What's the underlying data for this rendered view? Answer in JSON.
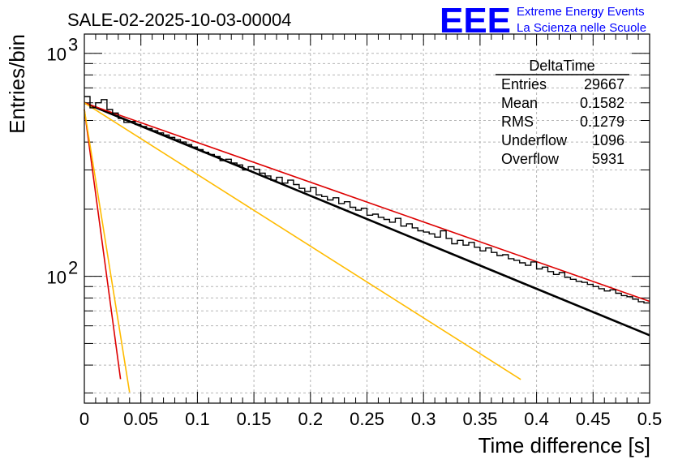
{
  "title": "SALE-02-2025-10-03-00004",
  "logo": {
    "mark": "EEE",
    "line1": "Extreme Energy Events",
    "line2": "La Scienza nelle Scuole",
    "color": "#0000ff"
  },
  "chart_data": {
    "type": "histogram",
    "xlabel": "Time difference [s]",
    "ylabel": "Entries/bin",
    "xlim": [
      0,
      0.5
    ],
    "ylim": [
      27,
      1220
    ],
    "yscale": "log",
    "grid": true,
    "xtick_labels": [
      "0",
      "0.05",
      "0.1",
      "0.15",
      "0.2",
      "0.25",
      "0.3",
      "0.35",
      "0.4",
      "0.45",
      "0.5"
    ],
    "ytick_labels": [
      {
        "base": "10",
        "exp": "2",
        "value": 100
      },
      {
        "base": "10",
        "exp": "3",
        "value": 1000
      }
    ],
    "histogram": {
      "bin_width": 0.005,
      "x_start": 0,
      "color": "#000000",
      "values": [
        640,
        570,
        600,
        620,
        560,
        540,
        510,
        490,
        495,
        480,
        470,
        460,
        450,
        440,
        430,
        420,
        410,
        400,
        390,
        380,
        370,
        360,
        352,
        345,
        330,
        335,
        322,
        316,
        300,
        310,
        302,
        290,
        282,
        270,
        278,
        262,
        270,
        258,
        248,
        240,
        250,
        232,
        228,
        220,
        225,
        212,
        216,
        204,
        198,
        202,
        188,
        190,
        184,
        180,
        175,
        182,
        168,
        172,
        165,
        160,
        158,
        155,
        150,
        160,
        148,
        140,
        145,
        138,
        142,
        135,
        130,
        134,
        128,
        124,
        125,
        120,
        118,
        115,
        112,
        116,
        108,
        110,
        105,
        102,
        104,
        99,
        97,
        95,
        94,
        92,
        90,
        88,
        86,
        87,
        84,
        82,
        81,
        79,
        77,
        76
      ]
    },
    "fits": [
      {
        "name": "fit",
        "color": "#000000",
        "x0": 0,
        "y0": 600,
        "slope_per_s": -4.8,
        "x_end": 0.5
      },
      {
        "name": "red-long",
        "color": "#dd0000",
        "x0": 0,
        "y0": 600,
        "slope_per_s": -4.1,
        "x_end": 0.5
      },
      {
        "name": "red-short",
        "color": "#dd0000",
        "x0": 0,
        "y0": 560,
        "slope_per_s": -87,
        "x_end": 0.032
      },
      {
        "name": "yellow-long",
        "color": "#ffbb00",
        "x0": 0,
        "y0": 600,
        "slope_per_s": -7.4,
        "x_end": 0.386
      },
      {
        "name": "yellow-short",
        "color": "#ffbb00",
        "x0": 0,
        "y0": 560,
        "slope_per_s": -73,
        "x_end": 0.04
      }
    ]
  },
  "stats": {
    "name": "DeltaTime",
    "rows": [
      {
        "label": "Entries",
        "value": "29667"
      },
      {
        "label": "Mean",
        "value": "0.1582"
      },
      {
        "label": "RMS",
        "value": "0.1279"
      },
      {
        "label": "Underflow",
        "value": "1096"
      },
      {
        "label": "Overflow",
        "value": "5931"
      }
    ]
  }
}
